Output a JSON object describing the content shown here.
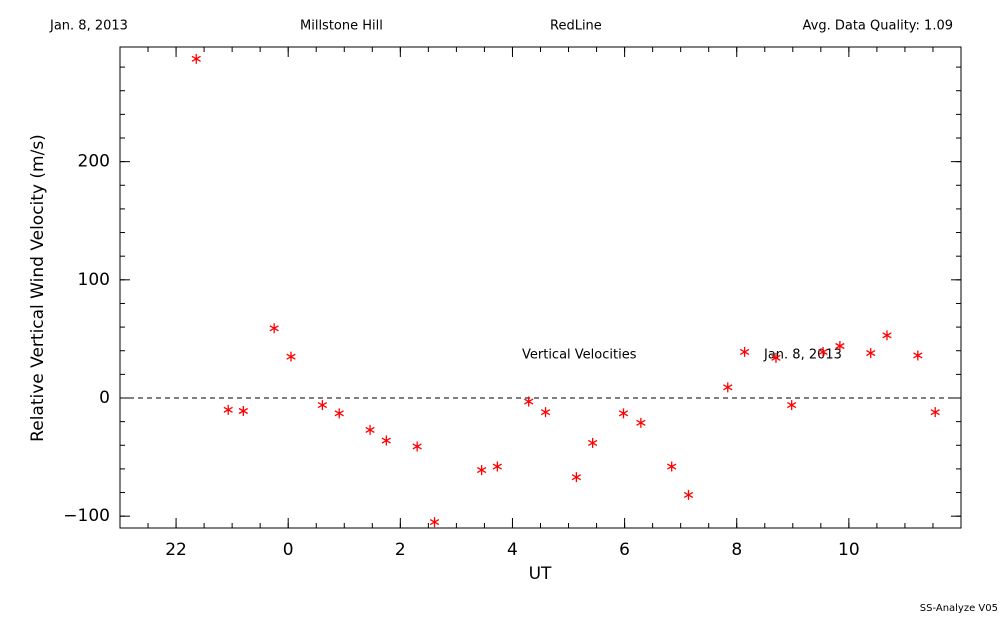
{
  "header": {
    "date": "Jan. 8, 2013",
    "site": "Millstone Hill",
    "instrument": "RedLine",
    "quality": "Avg. Data Quality: 1.09"
  },
  "footer": "SS-Analyze V05",
  "chart_data": {
    "type": "scatter",
    "xlabel": "UT",
    "ylabel": "Relative Vertical Wind Velocity (m/s)",
    "annotations": [
      "Vertical Velocities",
      "Jan. 8, 2013"
    ],
    "xlim": [
      21,
      36
    ],
    "ylim": [
      -110,
      297
    ],
    "xticks": [
      22,
      {
        "value": 24,
        "label": "0"
      },
      {
        "value": 26,
        "label": "2"
      },
      {
        "value": 28,
        "label": "4"
      },
      {
        "value": 30,
        "label": "6"
      },
      {
        "value": 32,
        "label": "8"
      },
      {
        "value": 34,
        "label": "10"
      }
    ],
    "yticks": [
      {
        "value": -100,
        "label": "−100"
      },
      0,
      100,
      200
    ],
    "xminor": 4,
    "yminor": 5,
    "hline": 0,
    "series": [
      {
        "color": "#ff0000",
        "x": [
          22.36,
          22.93,
          23.2,
          23.75,
          24.05,
          24.61,
          24.91,
          25.46,
          25.75,
          26.3,
          26.61,
          27.45,
          27.73,
          28.29,
          28.59,
          29.14,
          29.43,
          29.98,
          30.29,
          30.84,
          31.14,
          31.84,
          32.14,
          32.7,
          32.98,
          33.54,
          33.84,
          34.39,
          34.68,
          35.23,
          35.54
        ],
        "values": [
          287,
          -10,
          -11,
          59,
          35,
          -6,
          -13,
          -27,
          -36,
          -41,
          -105,
          -61,
          -58,
          -3,
          -12,
          -67,
          -38,
          -13,
          -21,
          -58,
          -82,
          9,
          39,
          34,
          -6,
          39,
          44,
          38,
          53,
          36,
          -12
        ]
      }
    ]
  }
}
